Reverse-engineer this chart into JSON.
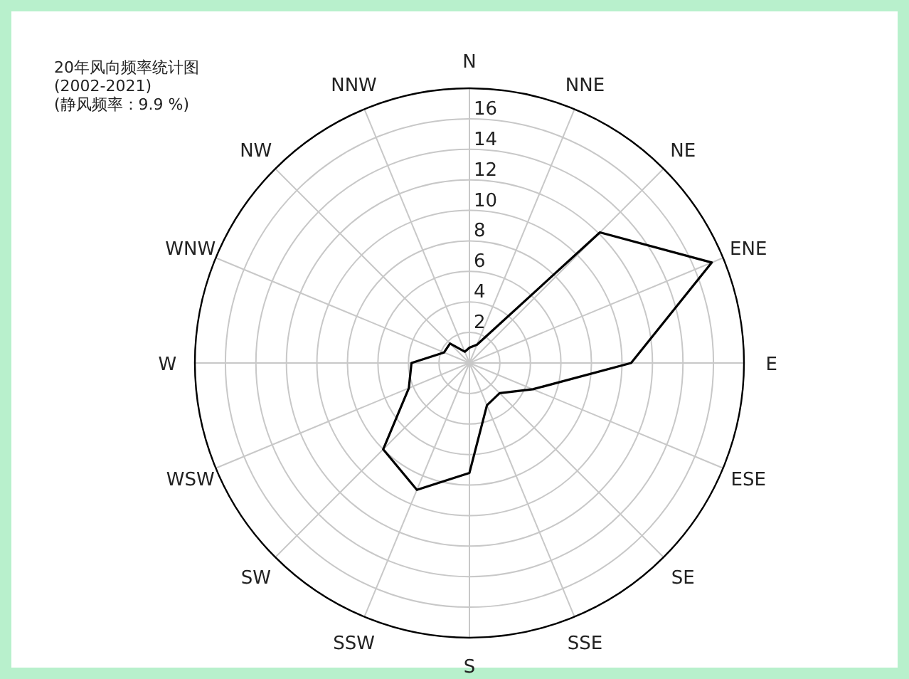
{
  "chart_data": {
    "type": "radar",
    "title": "20年风向频率统计图",
    "subtitle": "(2002-2021)",
    "annotations": [
      "(静风频率：9.9 %)"
    ],
    "categories": [
      "N",
      "NNE",
      "NE",
      "ENE",
      "E",
      "ESE",
      "SE",
      "SSE",
      "S",
      "SSW",
      "SW",
      "WSW",
      "W",
      "WNW",
      "NW",
      "NNW"
    ],
    "ylim": [
      0,
      18
    ],
    "yticks": [
      2,
      4,
      6,
      8,
      10,
      12,
      14,
      16
    ],
    "grid": true,
    "marker": "none",
    "line_style": "solid",
    "series": [
      {
        "color": "#000000",
        "values": [
          1.0,
          1.3,
          12.1,
          17.2,
          10.6,
          4.5,
          2.8,
          3.0,
          7.2,
          9.0,
          8.0,
          4.3,
          3.8,
          1.8,
          1.8,
          0.8
        ]
      }
    ]
  }
}
